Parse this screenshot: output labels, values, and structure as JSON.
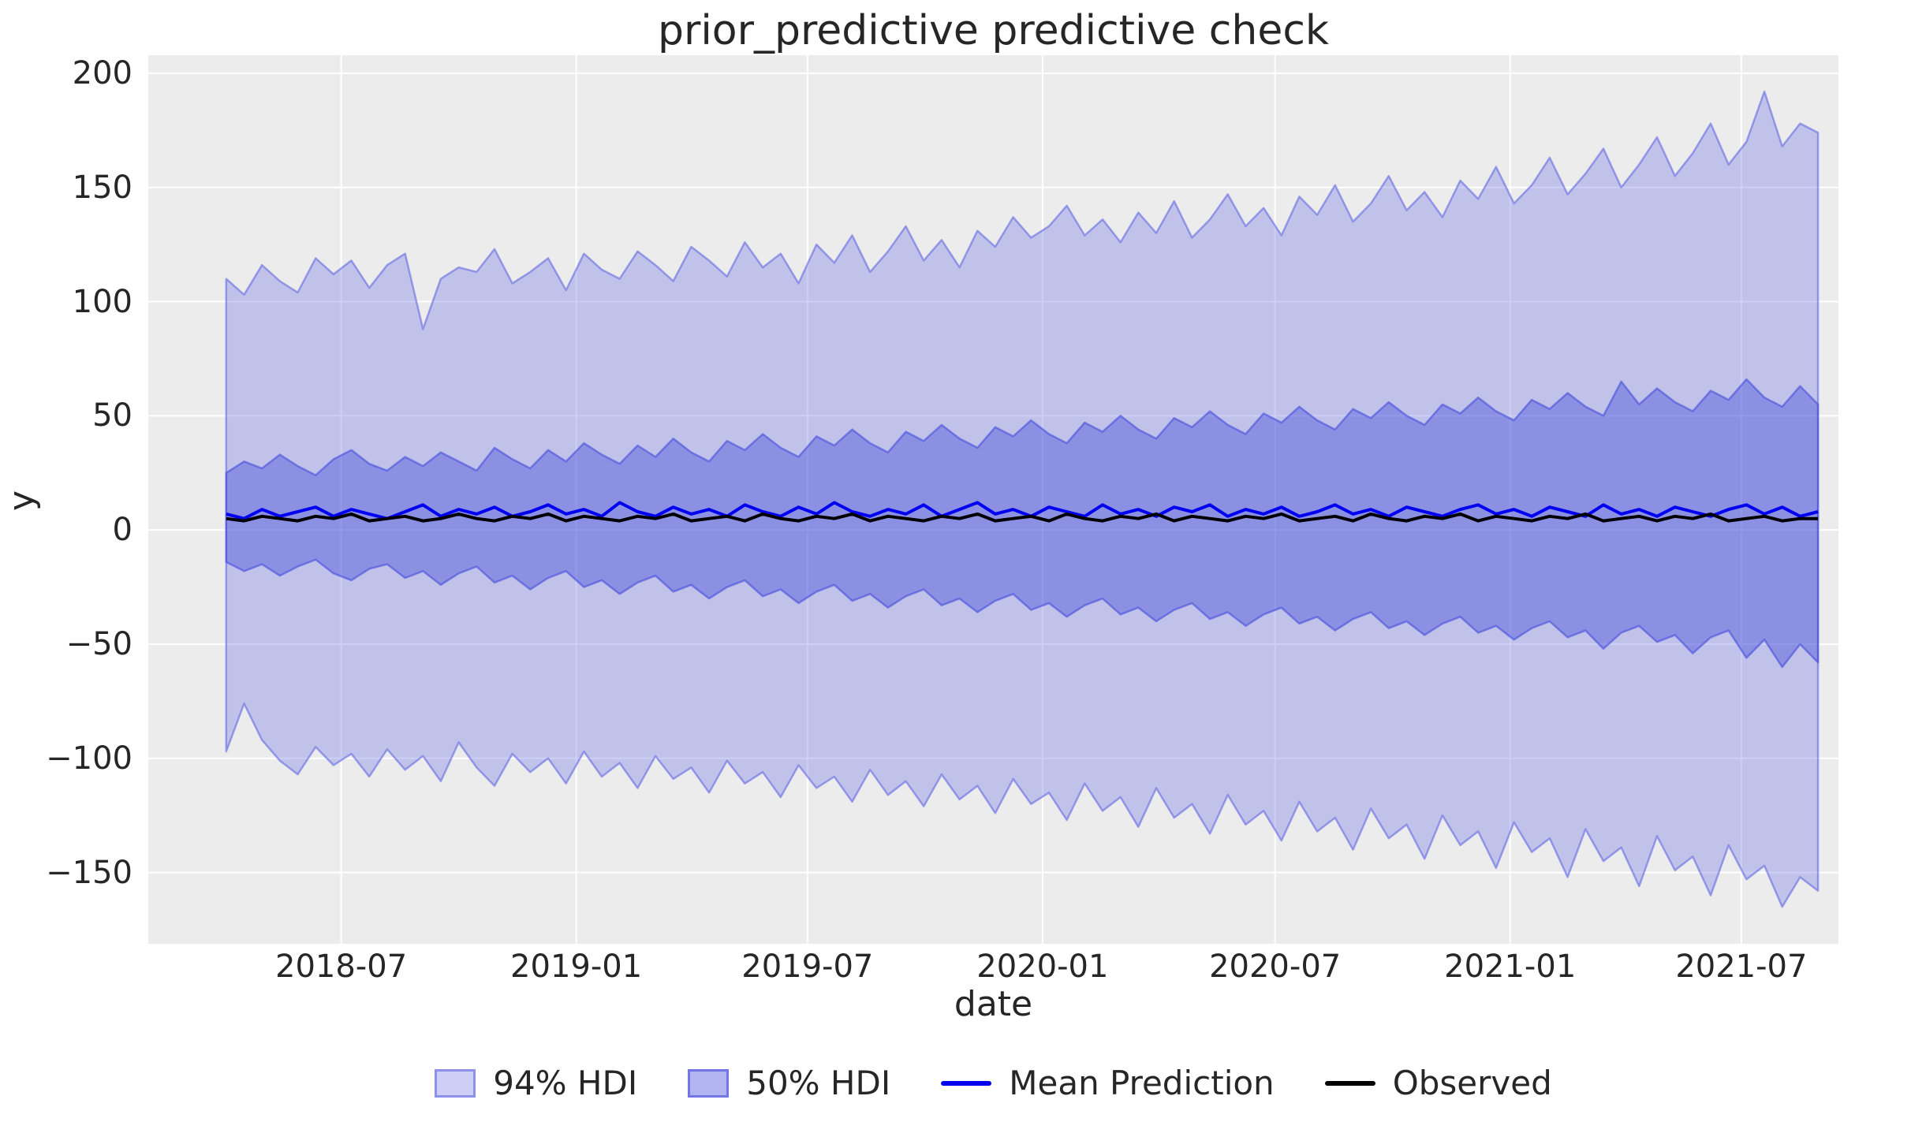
{
  "title": "prior_predictive predictive check",
  "colors": {
    "figure_background": "#ffffff",
    "plot_background": "#ececec",
    "grid": "#ffffff",
    "hdi94_fill": "rgba(90,95,225,0.30)",
    "hdi94_edge": "rgba(90,95,225,0.55)",
    "hdi50_fill": "rgba(70,76,220,0.42)",
    "hdi50_edge": "rgba(70,76,220,0.60)",
    "mean_line": "#0000f0",
    "observed_line": "#000000",
    "text": "#262626"
  },
  "chart_data": {
    "type": "area",
    "title": "prior_predictive predictive check",
    "xlabel": "date",
    "ylabel": "y",
    "grid": true,
    "legend_position": "bottom center",
    "xlim": [
      "2018-01-31",
      "2021-09-15"
    ],
    "ylim": [
      -181.2,
      207.9
    ],
    "x_start": "2018-04-02",
    "x_step_days": 14,
    "n_points": 90,
    "x_ticks": [
      {
        "date": "2018-07-01",
        "label": "2018-07"
      },
      {
        "date": "2019-01-01",
        "label": "2019-01"
      },
      {
        "date": "2019-07-01",
        "label": "2019-07"
      },
      {
        "date": "2020-01-01",
        "label": "2020-01"
      },
      {
        "date": "2020-07-01",
        "label": "2020-07"
      },
      {
        "date": "2021-01-01",
        "label": "2021-01"
      },
      {
        "date": "2021-07-01",
        "label": "2021-07"
      }
    ],
    "y_ticks": [
      {
        "value": 200,
        "label": "200"
      },
      {
        "value": 150,
        "label": "150"
      },
      {
        "value": 100,
        "label": "100"
      },
      {
        "value": 50,
        "label": "50"
      },
      {
        "value": 0,
        "label": "0"
      },
      {
        "value": -50,
        "label": "−50"
      },
      {
        "value": -100,
        "label": "−100"
      },
      {
        "value": -150,
        "label": "−150"
      }
    ],
    "series": [
      {
        "name": "94% HDI",
        "type": "band",
        "upper": [
          110,
          103,
          116,
          109,
          104,
          119,
          112,
          118,
          106,
          116,
          121,
          88,
          110,
          115,
          113,
          123,
          108,
          113,
          119,
          105,
          121,
          114,
          110,
          122,
          116,
          109,
          124,
          118,
          111,
          126,
          115,
          121,
          108,
          125,
          117,
          129,
          113,
          122,
          133,
          118,
          127,
          115,
          131,
          124,
          137,
          128,
          133,
          142,
          129,
          136,
          126,
          139,
          130,
          144,
          128,
          136,
          147,
          133,
          141,
          129,
          146,
          138,
          151,
          135,
          143,
          155,
          140,
          148,
          137,
          153,
          145,
          159,
          143,
          151,
          163,
          147,
          156,
          167,
          150,
          160,
          172,
          155,
          165,
          178,
          160,
          170,
          192,
          168,
          178,
          174
        ],
        "lower": [
          -97,
          -76,
          -92,
          -101,
          -107,
          -95,
          -103,
          -98,
          -108,
          -96,
          -105,
          -99,
          -110,
          -93,
          -104,
          -112,
          -98,
          -106,
          -100,
          -111,
          -97,
          -108,
          -102,
          -113,
          -99,
          -109,
          -104,
          -115,
          -101,
          -111,
          -106,
          -117,
          -103,
          -113,
          -108,
          -119,
          -105,
          -116,
          -110,
          -121,
          -107,
          -118,
          -112,
          -124,
          -109,
          -120,
          -115,
          -127,
          -111,
          -123,
          -117,
          -130,
          -113,
          -126,
          -120,
          -133,
          -116,
          -129,
          -123,
          -136,
          -119,
          -132,
          -126,
          -140,
          -122,
          -135,
          -129,
          -144,
          -125,
          -138,
          -132,
          -148,
          -128,
          -141,
          -135,
          -152,
          -131,
          -145,
          -139,
          -156,
          -134,
          -149,
          -143,
          -160,
          -138,
          -153,
          -147,
          -165,
          -152,
          -158
        ]
      },
      {
        "name": "50% HDI",
        "type": "band",
        "upper": [
          25,
          30,
          27,
          33,
          28,
          24,
          31,
          35,
          29,
          26,
          32,
          28,
          34,
          30,
          26,
          36,
          31,
          27,
          35,
          30,
          38,
          33,
          29,
          37,
          32,
          40,
          34,
          30,
          39,
          35,
          42,
          36,
          32,
          41,
          37,
          44,
          38,
          34,
          43,
          39,
          46,
          40,
          36,
          45,
          41,
          48,
          42,
          38,
          47,
          43,
          50,
          44,
          40,
          49,
          45,
          52,
          46,
          42,
          51,
          47,
          54,
          48,
          44,
          53,
          49,
          56,
          50,
          46,
          55,
          51,
          58,
          52,
          48,
          57,
          53,
          60,
          54,
          50,
          65,
          55,
          62,
          56,
          52,
          61,
          57,
          66,
          58,
          54,
          63,
          55
        ],
        "lower": [
          -14,
          -18,
          -15,
          -20,
          -16,
          -13,
          -19,
          -22,
          -17,
          -15,
          -21,
          -18,
          -24,
          -19,
          -16,
          -23,
          -20,
          -26,
          -21,
          -18,
          -25,
          -22,
          -28,
          -23,
          -20,
          -27,
          -24,
          -30,
          -25,
          -22,
          -29,
          -26,
          -32,
          -27,
          -24,
          -31,
          -28,
          -34,
          -29,
          -26,
          -33,
          -30,
          -36,
          -31,
          -28,
          -35,
          -32,
          -38,
          -33,
          -30,
          -37,
          -34,
          -40,
          -35,
          -32,
          -39,
          -36,
          -42,
          -37,
          -34,
          -41,
          -38,
          -44,
          -39,
          -36,
          -43,
          -40,
          -46,
          -41,
          -38,
          -45,
          -42,
          -48,
          -43,
          -40,
          -47,
          -44,
          -52,
          -45,
          -42,
          -49,
          -46,
          -54,
          -47,
          -44,
          -56,
          -48,
          -60,
          -50,
          -58
        ]
      },
      {
        "name": "Mean Prediction",
        "type": "line",
        "values": [
          7,
          5,
          9,
          6,
          8,
          10,
          6,
          9,
          7,
          5,
          8,
          11,
          6,
          9,
          7,
          10,
          6,
          8,
          11,
          7,
          9,
          6,
          12,
          8,
          6,
          10,
          7,
          9,
          6,
          11,
          8,
          6,
          10,
          7,
          12,
          8,
          6,
          9,
          7,
          11,
          6,
          9,
          12,
          7,
          9,
          6,
          10,
          8,
          6,
          11,
          7,
          9,
          6,
          10,
          8,
          11,
          6,
          9,
          7,
          10,
          6,
          8,
          11,
          7,
          9,
          6,
          10,
          8,
          6,
          9,
          11,
          7,
          9,
          6,
          10,
          8,
          6,
          11,
          7,
          9,
          6,
          10,
          8,
          6,
          9,
          11,
          7,
          10,
          6,
          8
        ]
      },
      {
        "name": "Observed",
        "type": "line",
        "values": [
          5,
          4,
          6,
          5,
          4,
          6,
          5,
          7,
          4,
          5,
          6,
          4,
          5,
          7,
          5,
          4,
          6,
          5,
          7,
          4,
          6,
          5,
          4,
          6,
          5,
          7,
          4,
          5,
          6,
          4,
          7,
          5,
          4,
          6,
          5,
          7,
          4,
          6,
          5,
          4,
          6,
          5,
          7,
          4,
          5,
          6,
          4,
          7,
          5,
          4,
          6,
          5,
          7,
          4,
          6,
          5,
          4,
          6,
          5,
          7,
          4,
          5,
          6,
          4,
          7,
          5,
          4,
          6,
          5,
          7,
          4,
          6,
          5,
          4,
          6,
          5,
          7,
          4,
          5,
          6,
          4,
          6,
          5,
          7,
          4,
          5,
          6,
          4,
          5,
          5
        ]
      }
    ]
  }
}
